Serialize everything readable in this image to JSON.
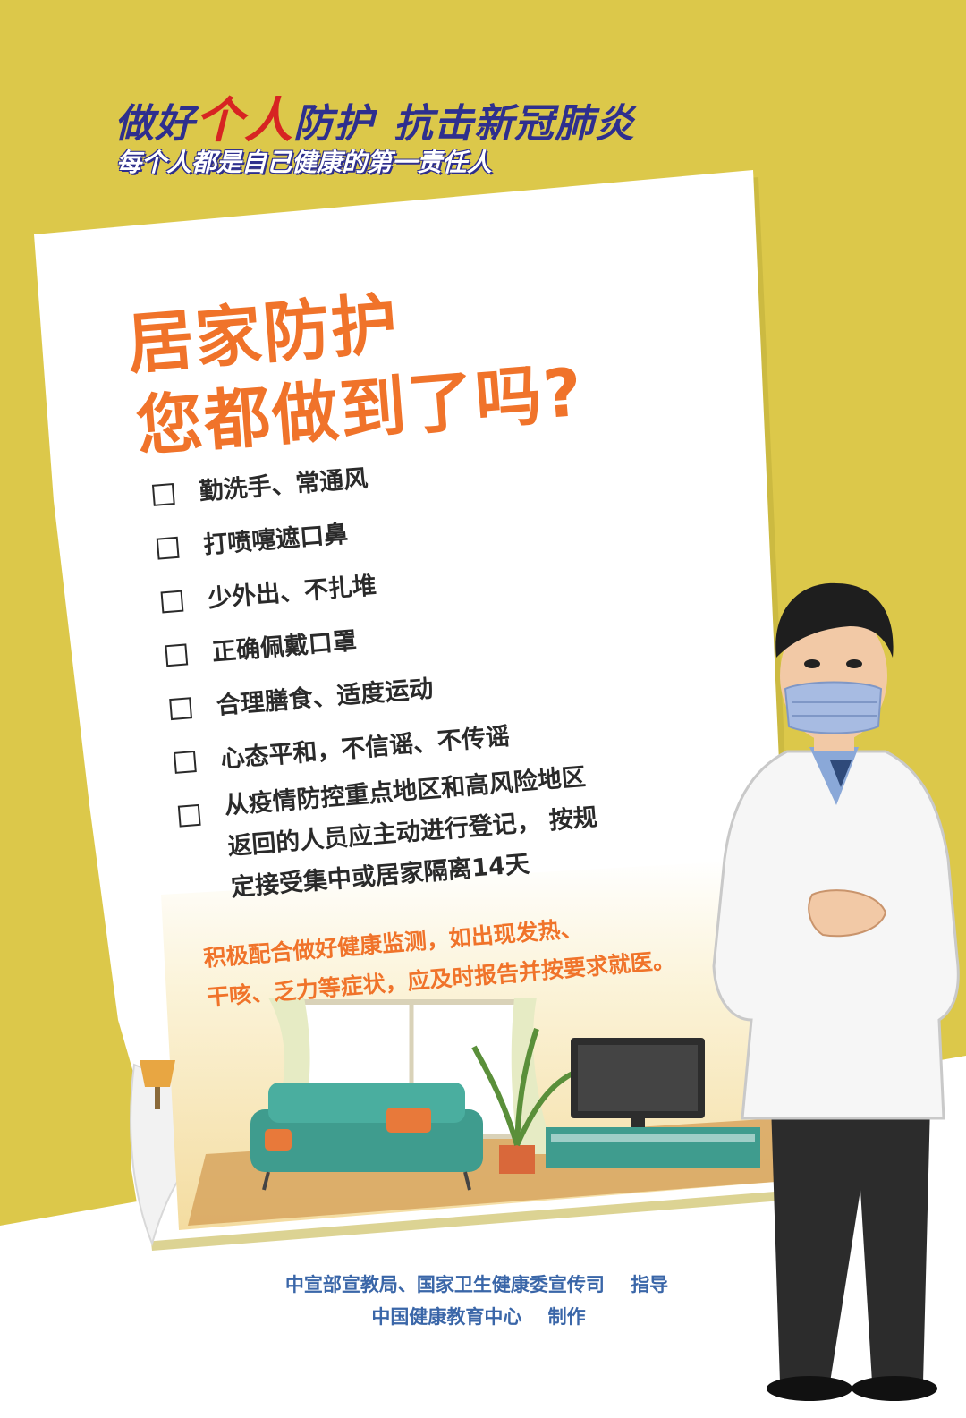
{
  "colors": {
    "background_yellow": "#dcc84a",
    "title_blue": "#2e2f8e",
    "title_red": "#d72422",
    "headline_orange": "#f0732a",
    "credit_blue": "#3a66a8"
  },
  "header": {
    "title_part1": "做好",
    "title_highlight": "个人",
    "title_part2": "防护",
    "title_part3": "抗击新冠肺炎",
    "subtitle": "每个人都是自己健康的第一责任人"
  },
  "headline": {
    "line1": "居家防护",
    "line2": "您都做到了吗?"
  },
  "checklist": [
    {
      "text": "勤洗手、常通风"
    },
    {
      "text": "打喷嚏遮口鼻"
    },
    {
      "text": "少外出、不扎堆"
    },
    {
      "text": "正确佩戴口罩"
    },
    {
      "text": "合理膳食、适度运动"
    },
    {
      "text": "心态平和，不信谣、不传谣"
    },
    {
      "text": "从疫情防控重点地区和高风险地区",
      "cont1": "返回的人员应主动进行登记， 按规",
      "cont2": "定接受集中或居家隔离14天"
    }
  ],
  "advice": {
    "line1": "积极配合做好健康监测，如出现发热、",
    "line2": "干咳、乏力等症状，应及时报告并按要求就医。"
  },
  "credits": {
    "line1": "中宣部宣教局、国家卫生健康委宣传司    指导",
    "line2": "中国健康教育中心    制作"
  },
  "icons": {
    "doctor": "doctor-illustration",
    "room": "living-room-illustration"
  }
}
